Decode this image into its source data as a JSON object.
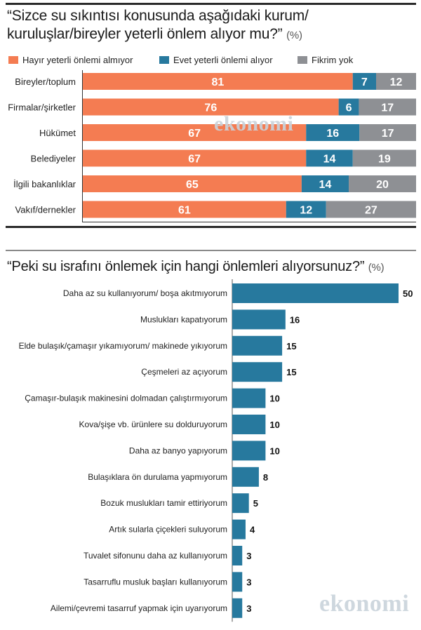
{
  "colors": {
    "hayir": "#f47c52",
    "evet": "#27799e",
    "fikrim": "#8e9094",
    "bar2": "#27799e"
  },
  "watermark": "ekonomi",
  "chart1_title_line1": "“Sizce su sıkıntısı konusunda aşağıdaki kurum/",
  "chart1_title_line2": "kuruluşlar/bireyler yeterli önlem alıyor mu?”",
  "chart1_unit": "(%)",
  "chart2_title": "“Peki su israfını önlemek için hangi önlemleri alıyorsunuz?”",
  "chart2_unit": "(%)",
  "chart_data": [
    {
      "type": "bar",
      "orientation": "horizontal",
      "stacked": true,
      "title": "“Sizce su sıkıntısı konusunda aşağıdaki kurum/ kuruluşlar/bireyler yeterli önlem alıyor mu?”",
      "unit": "(%)",
      "legend_position": "top",
      "categories": [
        "Bireyler/toplum",
        "Firmalar/şirketler",
        "Hükümet",
        "Belediyeler",
        "İlgili bakanlıklar",
        "Vakıf/dernekler"
      ],
      "series": [
        {
          "name": "Hayır yeterli önlemi almıyor",
          "color": "#f47c52",
          "values": [
            81,
            76,
            67,
            67,
            65,
            61
          ]
        },
        {
          "name": "Evet yeterli önlemi alıyor",
          "color": "#27799e",
          "values": [
            7,
            6,
            16,
            14,
            14,
            12
          ]
        },
        {
          "name": "Fikrim yok",
          "color": "#8e9094",
          "values": [
            12,
            17,
            17,
            19,
            20,
            27
          ]
        }
      ],
      "xlim": [
        0,
        100
      ]
    },
    {
      "type": "bar",
      "orientation": "horizontal",
      "title": "“Peki su israfını önlemek için hangi önlemleri alıyorsunuz?”",
      "unit": "(%)",
      "categories": [
        "Daha az su kullanıyorum/ boşa akıtmıyorum",
        "Muslukları kapatıyorum",
        "Elde bulaşık/çamaşır yıkamıyorum/ makinede yıkıyorum",
        "Çeşmeleri az açıyorum",
        "Çamaşır-bulaşık makinesini dolmadan çalıştırmıyorum",
        "Kova/şişe vb. ürünlere su dolduruyorum",
        "Daha az banyo yapıyorum",
        "Bulaşıklara ön durulama yapmıyorum",
        "Bozuk muslukları tamir ettiriyorum",
        "Artık sularla çiçekleri suluyorum",
        "Tuvalet sifonunu daha az kullanıyorum",
        "Tasarruflu musluk başları kullanıyorum",
        "Ailemi/çevremi tasarruf yapmak için uyarıyorum"
      ],
      "values": [
        50,
        16,
        15,
        15,
        10,
        10,
        10,
        8,
        5,
        4,
        3,
        3,
        3
      ],
      "color": "#27799e",
      "xlim": [
        0,
        50
      ]
    }
  ]
}
